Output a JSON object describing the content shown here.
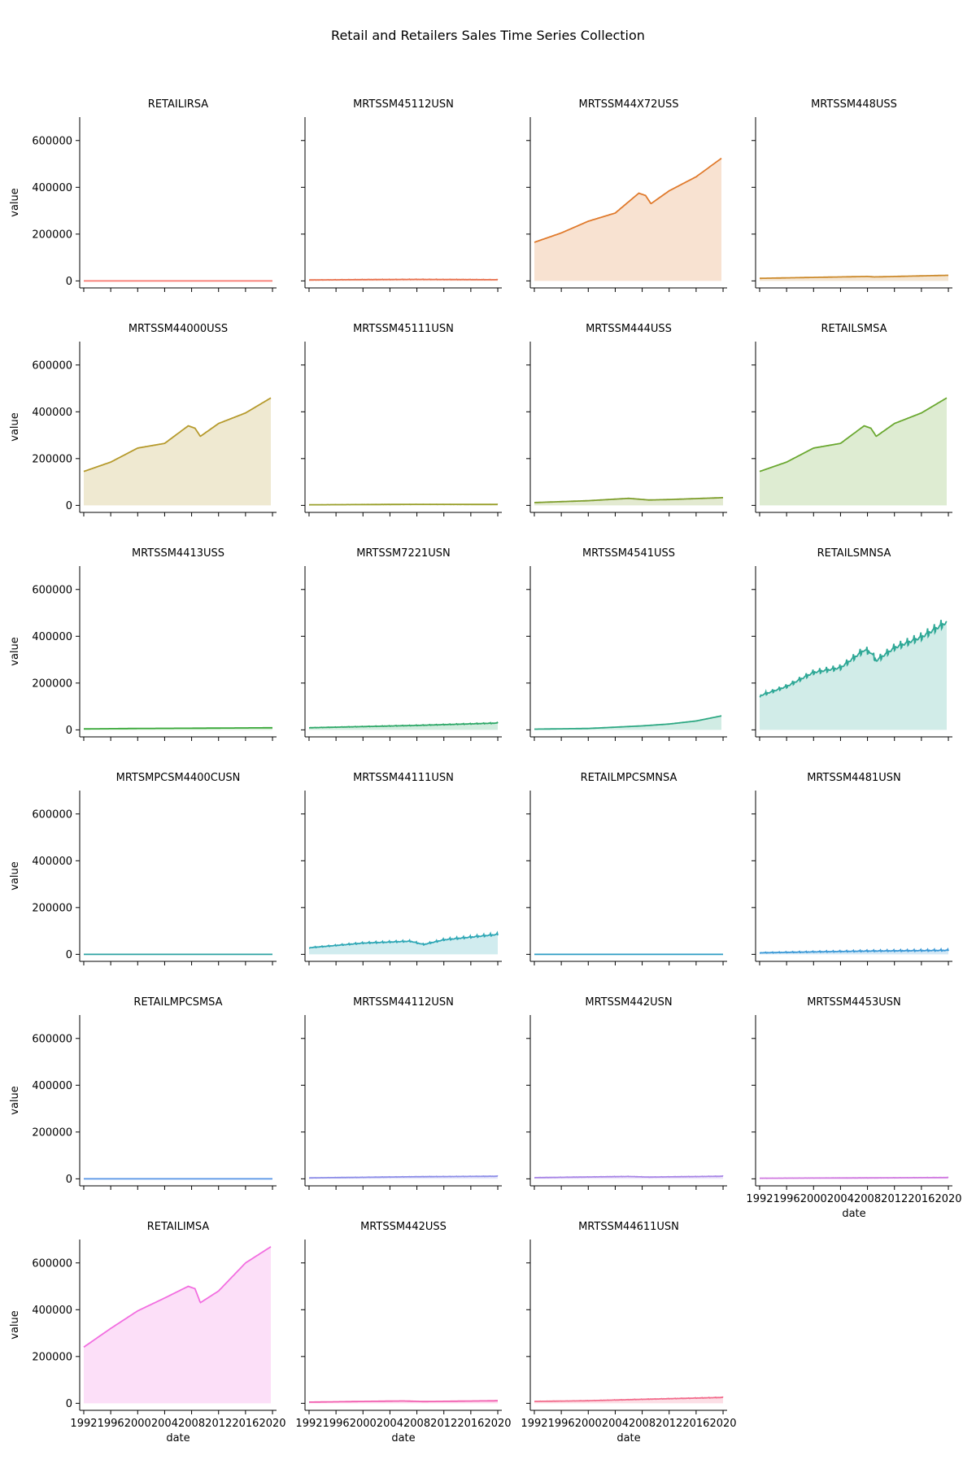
{
  "figure": {
    "title": "Retail and Retailers Sales Time Series Collection"
  },
  "chart_data": {
    "type": "area",
    "layout": "facet-grid",
    "columns": 4,
    "xlabel": "date",
    "ylabel": "value",
    "x_ticks": [
      "1992",
      "1996",
      "2000",
      "2004",
      "2008",
      "2012",
      "2016",
      "2020"
    ],
    "x_range": [
      1991.4,
      2020.6
    ],
    "y_ticks": [
      0,
      200000,
      400000,
      600000
    ],
    "ylim": [
      -30000,
      700000
    ],
    "grid": false,
    "legend": "none",
    "series": [
      {
        "name": "RETAILIRSA",
        "color": "#f8766d",
        "seasonal": 0,
        "x": [
          1992,
          2000,
          2008,
          2009,
          2020
        ],
        "values": [
          1.5,
          1.4,
          1.3,
          1.4,
          1.3
        ]
      },
      {
        "name": "MRTSSM45112USN",
        "color": "#e8724f",
        "seasonal": 800,
        "x": [
          1992,
          2000,
          2008,
          2020
        ],
        "values": [
          4000,
          5500,
          6500,
          5000
        ]
      },
      {
        "name": "MRTSSM44X72USS",
        "color": "#e07a2c",
        "seasonal": 0,
        "x": [
          1992,
          1996,
          2000,
          2004,
          2007.5,
          2008.5,
          2009.3,
          2012,
          2016,
          2019.8
        ],
        "values": [
          165000,
          205000,
          255000,
          290000,
          375000,
          365000,
          330000,
          385000,
          445000,
          525000
        ]
      },
      {
        "name": "MRTSSM448USS",
        "color": "#cc8a2c",
        "seasonal": 0,
        "x": [
          1992,
          2000,
          2008,
          2009,
          2020
        ],
        "values": [
          11000,
          15000,
          19000,
          17000,
          24000
        ]
      },
      {
        "name": "MRTSSM44000USS",
        "color": "#b69a2c",
        "seasonal": 0,
        "x": [
          1992,
          1996,
          2000,
          2004,
          2007.5,
          2008.5,
          2009.3,
          2012,
          2016,
          2019.8
        ],
        "values": [
          145000,
          185000,
          245000,
          265000,
          340000,
          330000,
          295000,
          350000,
          395000,
          460000
        ]
      },
      {
        "name": "MRTSSM45111USN",
        "color": "#9aa02c",
        "seasonal": 300,
        "x": [
          1992,
          2000,
          2008,
          2020
        ],
        "values": [
          2500,
          3500,
          4500,
          4000
        ]
      },
      {
        "name": "MRTSSM444USS",
        "color": "#7e9e2c",
        "seasonal": 0,
        "x": [
          1992,
          2000,
          2006,
          2009,
          2012,
          2020
        ],
        "values": [
          12000,
          20000,
          30000,
          23000,
          25000,
          33000
        ]
      },
      {
        "name": "RETAILSMSA",
        "color": "#6aa830",
        "seasonal": 0,
        "x": [
          1992,
          1996,
          2000,
          2004,
          2007.5,
          2008.5,
          2009.3,
          2012,
          2016,
          2019.8
        ],
        "values": [
          145000,
          185000,
          245000,
          265000,
          340000,
          330000,
          295000,
          350000,
          395000,
          460000
        ]
      },
      {
        "name": "MRTSSM4413USS",
        "color": "#3aa83a",
        "seasonal": 0,
        "x": [
          1992,
          2000,
          2008,
          2020
        ],
        "values": [
          4000,
          6000,
          7000,
          9000
        ]
      },
      {
        "name": "MRTSSM7221USN",
        "color": "#2ea868",
        "seasonal": 2500,
        "x": [
          1992,
          2000,
          2008,
          2020
        ],
        "values": [
          9000,
          14000,
          19000,
          29000
        ]
      },
      {
        "name": "MRTSSM4541USS",
        "color": "#2ea883",
        "seasonal": 0,
        "x": [
          1992,
          2000,
          2008,
          2012,
          2016,
          2019.8
        ],
        "values": [
          3000,
          6000,
          17000,
          25000,
          38000,
          60000
        ]
      },
      {
        "name": "RETAILSMNSA",
        "color": "#2ea896",
        "seasonal": 26000,
        "x": [
          1992,
          1996,
          2000,
          2004,
          2007.5,
          2008.5,
          2009.3,
          2012,
          2016,
          2019.8
        ],
        "values": [
          145000,
          185000,
          245000,
          265000,
          340000,
          330000,
          295000,
          350000,
          395000,
          460000
        ]
      },
      {
        "name": "MRTSMPCSM4400CUSN",
        "color": "#2ea3a3",
        "seasonal": 0,
        "x": [
          1992,
          2020
        ],
        "values": [
          1,
          1
        ]
      },
      {
        "name": "MRTSSM44111USN",
        "color": "#2ea7b5",
        "seasonal": 7000,
        "x": [
          1992,
          2000,
          2007,
          2009,
          2012,
          2020
        ],
        "values": [
          28000,
          48000,
          56000,
          42000,
          62000,
          85000
        ]
      },
      {
        "name": "RETAILMPCSMNSA",
        "color": "#2e9cc4",
        "seasonal": 0,
        "x": [
          1992,
          2020
        ],
        "values": [
          1,
          1
        ]
      },
      {
        "name": "MRTSSM4481USN",
        "color": "#3a98d6",
        "seasonal": 5000,
        "x": [
          1992,
          2000,
          2008,
          2020
        ],
        "values": [
          6500,
          10500,
          14000,
          17000
        ]
      },
      {
        "name": "RETAILMPCSMSA",
        "color": "#5593e6",
        "seasonal": 0,
        "x": [
          1992,
          2020
        ],
        "values": [
          1,
          1
        ]
      },
      {
        "name": "MRTSSM44112USN",
        "color": "#8d8ee8",
        "seasonal": 1000,
        "x": [
          1992,
          2000,
          2008,
          2020
        ],
        "values": [
          4000,
          6500,
          9000,
          11000
        ]
      },
      {
        "name": "MRTSSM442USN",
        "color": "#a886e6",
        "seasonal": 1000,
        "x": [
          1992,
          2000,
          2006,
          2009,
          2020
        ],
        "values": [
          5000,
          8000,
          10000,
          7500,
          11000
        ]
      },
      {
        "name": "MRTSSM4453USN",
        "color": "#d07ae0",
        "seasonal": 600,
        "x": [
          1992,
          2000,
          2008,
          2020
        ],
        "values": [
          2500,
          3300,
          4000,
          5500
        ]
      },
      {
        "name": "RETAILIMSA",
        "color": "#f26ee0",
        "seasonal": 0,
        "x": [
          1992,
          1996,
          2000,
          2004,
          2007.5,
          2008.5,
          2009.3,
          2012,
          2016,
          2019.8
        ],
        "values": [
          240000,
          320000,
          395000,
          450000,
          500000,
          490000,
          430000,
          480000,
          600000,
          670000
        ]
      },
      {
        "name": "MRTSSM442USS",
        "color": "#f25fb0",
        "seasonal": 0,
        "x": [
          1992,
          2000,
          2006,
          2009,
          2020
        ],
        "values": [
          5000,
          8000,
          10000,
          7500,
          11000
        ]
      },
      {
        "name": "MRTSSM44611USN",
        "color": "#f26c8c",
        "seasonal": 1500,
        "x": [
          1992,
          2000,
          2008,
          2020
        ],
        "values": [
          8000,
          11000,
          17000,
          25000
        ]
      }
    ]
  }
}
